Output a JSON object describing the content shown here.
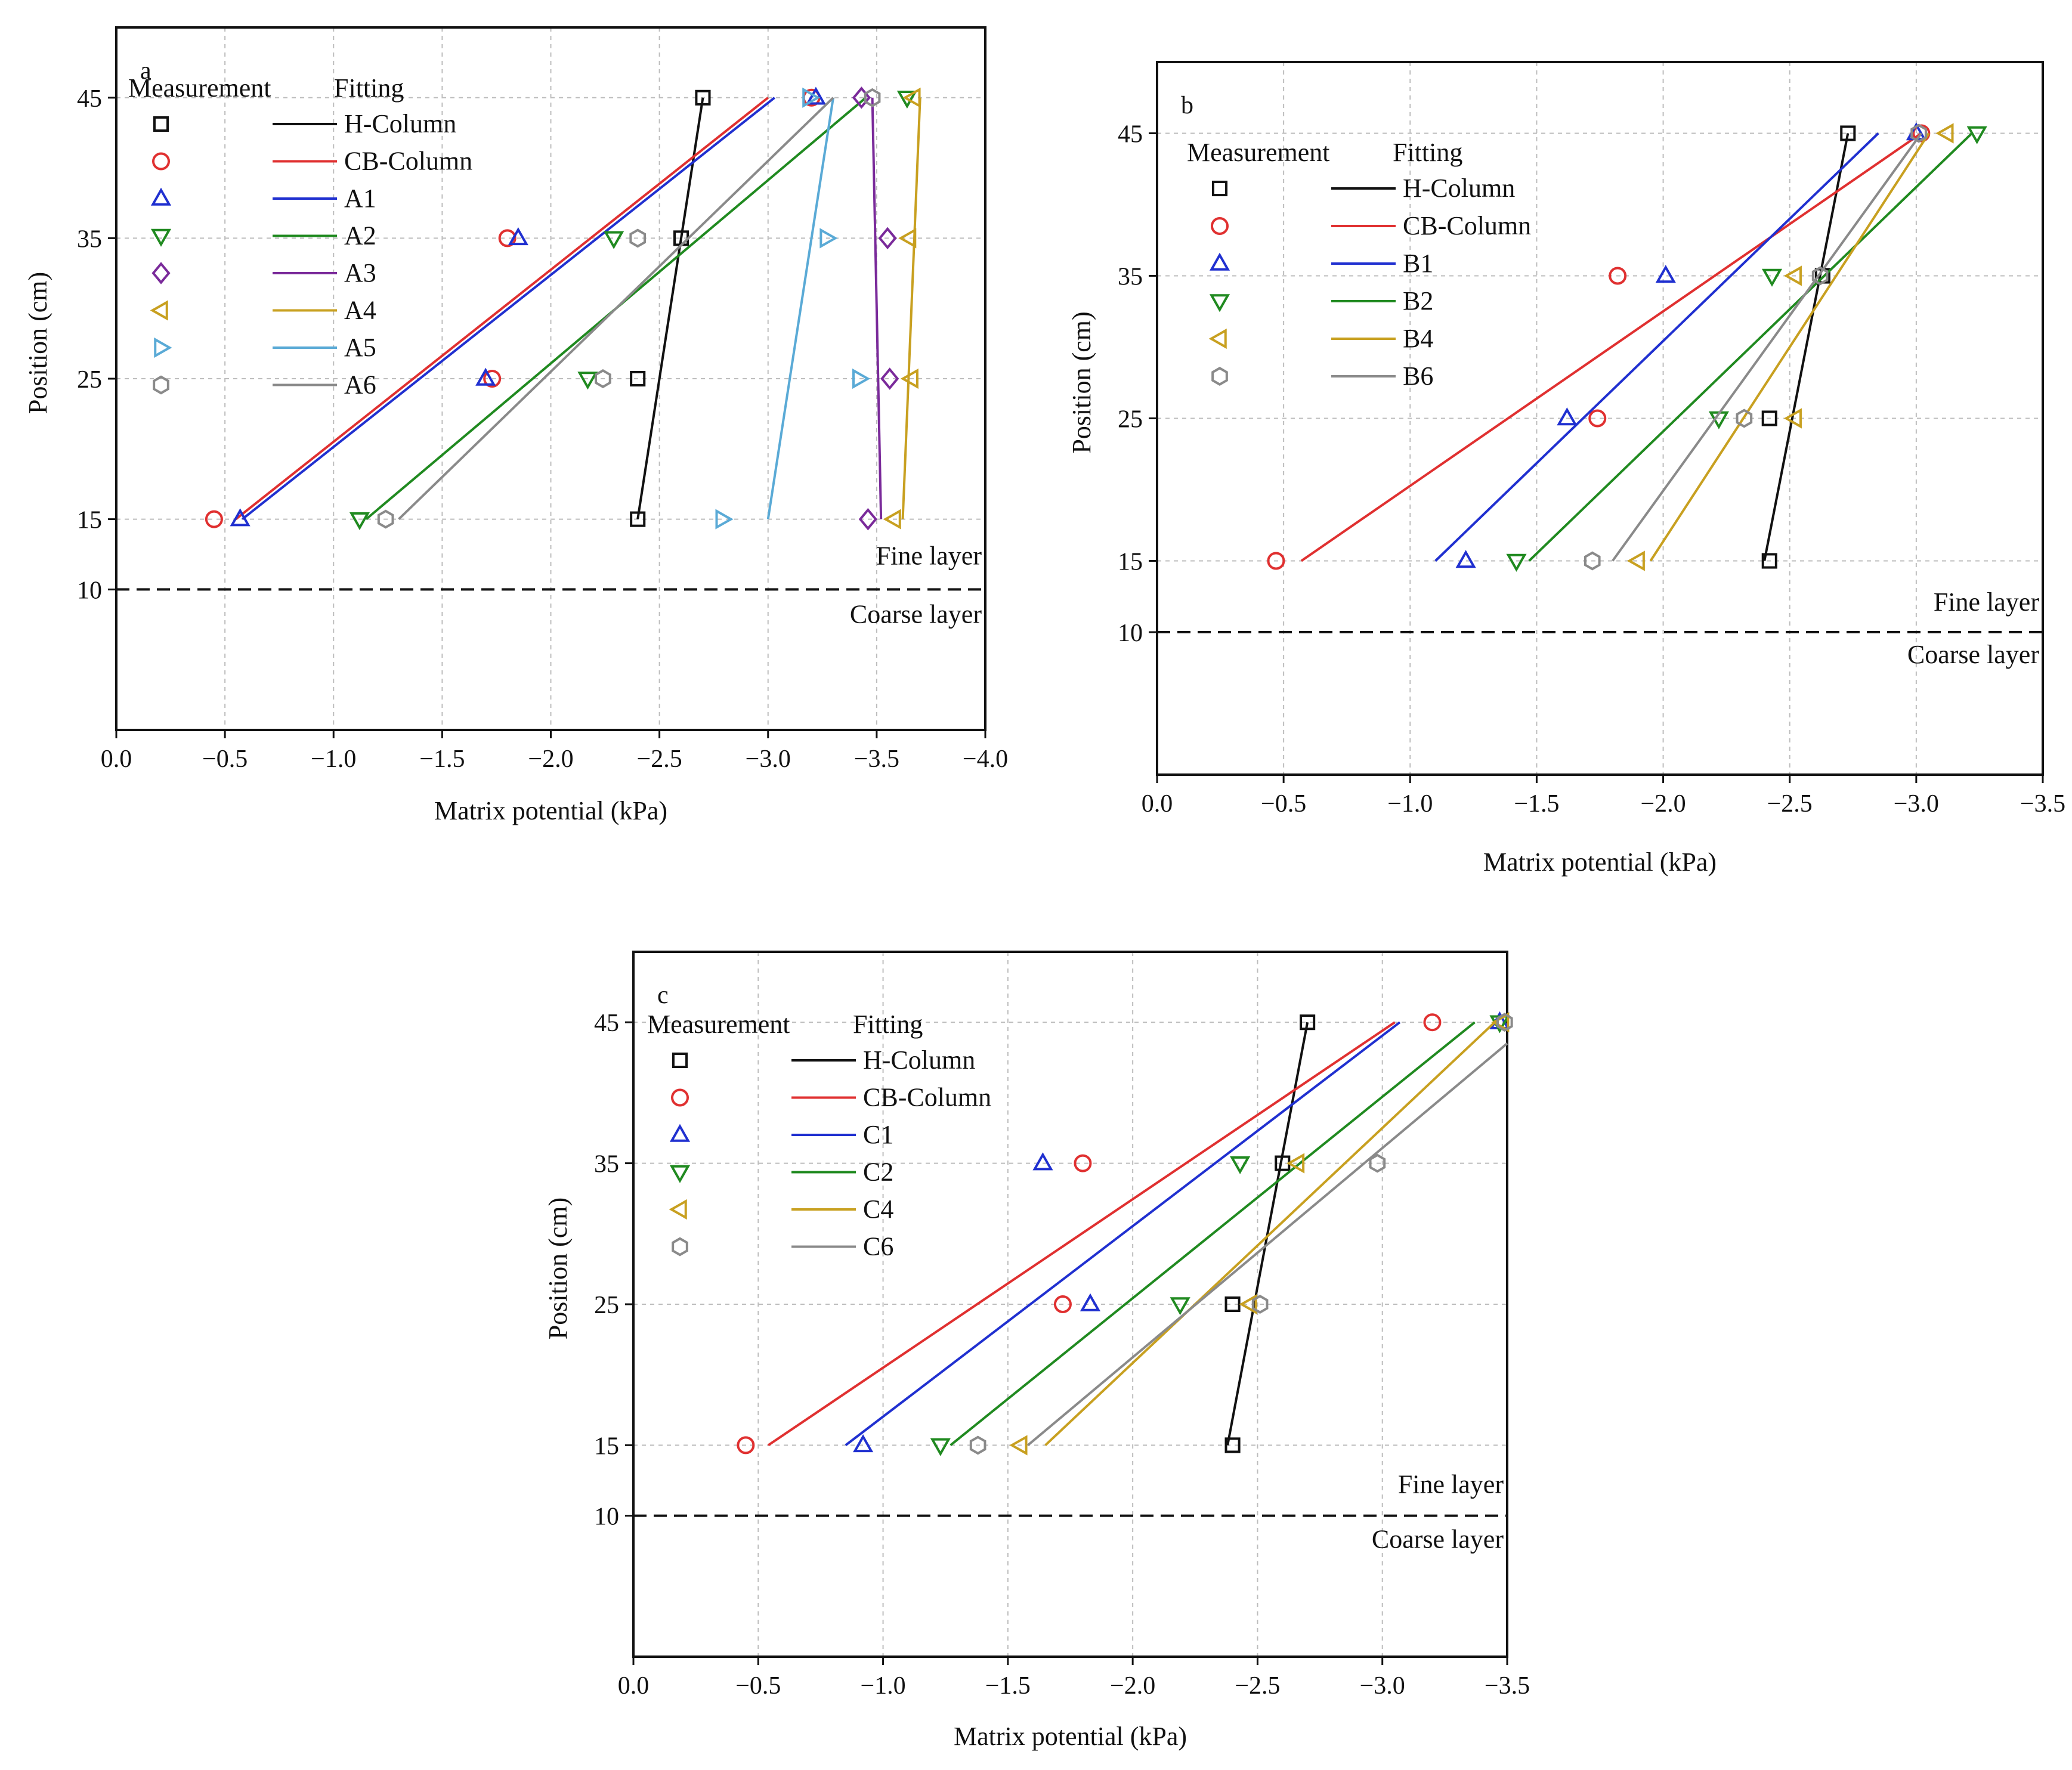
{
  "chart_data": [
    {
      "panel_label": "a",
      "type": "scatter",
      "xlabel": "Matrix potential (kPa)",
      "ylabel": "Position (cm)",
      "xlim": [
        0.0,
        -4.0
      ],
      "ylim": [
        0,
        50
      ],
      "xticks": [
        0.0,
        -0.5,
        -1.0,
        -1.5,
        -2.0,
        -2.5,
        -3.0,
        -3.5,
        -4.0
      ],
      "xtick_labels": [
        "0.0",
        "−0.5",
        "−1.0",
        "−1.5",
        "−2.0",
        "−2.5",
        "−3.0",
        "−3.5",
        "−4.0"
      ],
      "yticks": [
        10,
        15,
        25,
        35,
        45
      ],
      "ytick_labels": [
        "10",
        "15",
        "25",
        "35",
        "45"
      ],
      "grid": true,
      "legend_headers": [
        "Measurement",
        "Fitting"
      ],
      "legend_placement": "top-left",
      "interface_y": 10,
      "fine_label": "Fine layer",
      "coarse_label": "Coarse layer",
      "series": [
        {
          "name": "H-Column",
          "color": "#111111",
          "marker": "square",
          "x": [
            -2.4,
            -2.4,
            -2.6,
            -2.7
          ],
          "y": [
            15,
            25,
            35,
            45
          ],
          "fit": [
            [
              -2.4,
              15
            ],
            [
              -2.7,
              45
            ]
          ]
        },
        {
          "name": "CB-Column",
          "color": "#e03030",
          "marker": "circle",
          "x": [
            -0.45,
            -1.73,
            -1.8,
            -3.2
          ],
          "y": [
            15,
            25,
            35,
            45
          ],
          "fit": [
            [
              -0.55,
              15
            ],
            [
              -3.0,
              45
            ]
          ]
        },
        {
          "name": "A1",
          "color": "#2030d0",
          "marker": "triangle-up",
          "x": [
            -0.57,
            -1.7,
            -1.85,
            -3.22
          ],
          "y": [
            15,
            25,
            35,
            45
          ],
          "fit": [
            [
              -0.58,
              15
            ],
            [
              -3.03,
              45
            ]
          ]
        },
        {
          "name": "A2",
          "color": "#208a20",
          "marker": "triangle-down",
          "x": [
            -1.12,
            -2.17,
            -2.29,
            -3.64
          ],
          "y": [
            15,
            25,
            35,
            45
          ],
          "fit": [
            [
              -1.15,
              15
            ],
            [
              -3.45,
              45
            ]
          ]
        },
        {
          "name": "A3",
          "color": "#7a2a9a",
          "marker": "diamond",
          "x": [
            -3.46,
            -3.56,
            -3.55,
            -3.43
          ],
          "y": [
            15,
            25,
            35,
            45
          ],
          "fit": [
            [
              -3.52,
              15
            ],
            [
              -3.48,
              45
            ]
          ]
        },
        {
          "name": "A4",
          "color": "#c8a020",
          "marker": "triangle-left",
          "x": [
            -3.58,
            -3.66,
            -3.65,
            -3.67
          ],
          "y": [
            15,
            25,
            35,
            45
          ],
          "fit": [
            [
              -3.62,
              15
            ],
            [
              -3.7,
              45
            ]
          ]
        },
        {
          "name": "A5",
          "color": "#5aaad6",
          "marker": "triangle-right",
          "x": [
            -2.79,
            -3.42,
            -3.27,
            -3.19
          ],
          "y": [
            15,
            25,
            35,
            45
          ],
          "fit": [
            [
              -3.0,
              15
            ],
            [
              -3.3,
              45
            ]
          ]
        },
        {
          "name": "A6",
          "color": "#8a8a8a",
          "marker": "hexagon",
          "x": [
            -1.24,
            -2.24,
            -2.4,
            -3.48
          ],
          "y": [
            15,
            25,
            35,
            45
          ],
          "fit": [
            [
              -1.3,
              15
            ],
            [
              -3.3,
              45
            ]
          ]
        }
      ]
    },
    {
      "panel_label": "b",
      "type": "scatter",
      "xlabel": "Matrix potential (kPa)",
      "ylabel": "Position (cm)",
      "xlim": [
        0.0,
        -3.5
      ],
      "ylim": [
        0,
        50
      ],
      "xticks": [
        0.0,
        -0.5,
        -1.0,
        -1.5,
        -2.0,
        -2.5,
        -3.0,
        -3.5
      ],
      "xtick_labels": [
        "0.0",
        "−0.5",
        "−1.0",
        "−1.5",
        "−2.0",
        "−2.5",
        "−3.0",
        "−3.5"
      ],
      "yticks": [
        10,
        15,
        25,
        35,
        45
      ],
      "ytick_labels": [
        "10",
        "15",
        "25",
        "35",
        "45"
      ],
      "grid": true,
      "legend_headers": [
        "Measurement",
        "Fitting"
      ],
      "legend_placement": "top-left",
      "interface_y": 10,
      "fine_label": "Fine layer",
      "coarse_label": "Coarse layer",
      "series": [
        {
          "name": "H-Column",
          "color": "#111111",
          "marker": "square",
          "x": [
            -2.42,
            -2.42,
            -2.63,
            -2.73
          ],
          "y": [
            15,
            25,
            35,
            45
          ],
          "fit": [
            [
              -2.4,
              15
            ],
            [
              -2.73,
              45
            ]
          ]
        },
        {
          "name": "CB-Column",
          "color": "#e03030",
          "marker": "circle",
          "x": [
            -0.47,
            -1.74,
            -1.82,
            -3.02
          ],
          "y": [
            15,
            25,
            35,
            45
          ],
          "fit": [
            [
              -0.57,
              15
            ],
            [
              -3.02,
              45
            ]
          ]
        },
        {
          "name": "B1",
          "color": "#2030d0",
          "marker": "triangle-up",
          "x": [
            -1.22,
            -1.62,
            -2.01,
            -3.0
          ],
          "y": [
            15,
            25,
            35,
            45
          ],
          "fit": [
            [
              -1.1,
              15
            ],
            [
              -2.85,
              45
            ]
          ]
        },
        {
          "name": "B2",
          "color": "#208a20",
          "marker": "triangle-down",
          "x": [
            -1.42,
            -2.22,
            -2.43,
            -3.24
          ],
          "y": [
            15,
            25,
            35,
            45
          ],
          "fit": [
            [
              -1.47,
              15
            ],
            [
              -3.22,
              45
            ]
          ]
        },
        {
          "name": "B4",
          "color": "#c8a020",
          "marker": "triangle-left",
          "x": [
            -1.9,
            -2.52,
            -2.52,
            -3.12
          ],
          "y": [
            15,
            25,
            35,
            45
          ],
          "fit": [
            [
              -1.95,
              15
            ],
            [
              -3.05,
              45
            ]
          ]
        },
        {
          "name": "B6",
          "color": "#8a8a8a",
          "marker": "hexagon",
          "x": [
            -1.72,
            -2.32,
            -2.62,
            -3.01
          ],
          "y": [
            15,
            25,
            35,
            45
          ],
          "fit": [
            [
              -1.8,
              15
            ],
            [
              -3.02,
              45
            ]
          ]
        }
      ]
    },
    {
      "panel_label": "c",
      "type": "scatter",
      "xlabel": "Matrix potential (kPa)",
      "ylabel": "Position (cm)",
      "xlim": [
        0.0,
        -3.5
      ],
      "ylim": [
        0,
        50
      ],
      "xticks": [
        0.0,
        -0.5,
        -1.0,
        -1.5,
        -2.0,
        -2.5,
        -3.0,
        -3.5
      ],
      "xtick_labels": [
        "0.0",
        "−0.5",
        "−1.0",
        "−1.5",
        "−2.0",
        "−2.5",
        "−3.0",
        "−3.5"
      ],
      "yticks": [
        10,
        15,
        25,
        35,
        45
      ],
      "ytick_labels": [
        "10",
        "15",
        "25",
        "35",
        "45"
      ],
      "grid": true,
      "legend_headers": [
        "Measurement",
        "Fitting"
      ],
      "legend_placement": "top-left",
      "interface_y": 10,
      "fine_label": "Fine layer",
      "coarse_label": "Coarse layer",
      "series": [
        {
          "name": "H-Column",
          "color": "#111111",
          "marker": "square",
          "x": [
            -2.4,
            -2.4,
            -2.6,
            -2.7
          ],
          "y": [
            15,
            25,
            35,
            45
          ],
          "fit": [
            [
              -2.38,
              15
            ],
            [
              -2.7,
              45
            ]
          ]
        },
        {
          "name": "CB-Column",
          "color": "#e03030",
          "marker": "circle",
          "x": [
            -0.45,
            -1.72,
            -1.8,
            -3.2
          ],
          "y": [
            15,
            25,
            35,
            45
          ],
          "fit": [
            [
              -0.54,
              15
            ],
            [
              -3.05,
              45
            ]
          ]
        },
        {
          "name": "C1",
          "color": "#2030d0",
          "marker": "triangle-up",
          "x": [
            -0.92,
            -1.83,
            -1.64,
            -3.47
          ],
          "y": [
            15,
            25,
            35,
            45
          ],
          "fit": [
            [
              -0.85,
              15
            ],
            [
              -3.07,
              45
            ]
          ]
        },
        {
          "name": "C2",
          "color": "#208a20",
          "marker": "triangle-down",
          "x": [
            -1.23,
            -2.19,
            -2.43,
            -3.47
          ],
          "y": [
            15,
            25,
            35,
            45
          ],
          "fit": [
            [
              -1.27,
              15
            ],
            [
              -3.37,
              45
            ]
          ]
        },
        {
          "name": "C4",
          "color": "#c8a020",
          "marker": "triangle-left",
          "x": [
            -1.55,
            -2.47,
            -2.66,
            -3.48
          ],
          "y": [
            15,
            25,
            35,
            45
          ],
          "fit": [
            [
              -1.65,
              15
            ],
            [
              -3.45,
              45
            ]
          ]
        },
        {
          "name": "C6",
          "color": "#8a8a8a",
          "marker": "hexagon",
          "x": [
            -1.38,
            -2.51,
            -2.98,
            -3.49
          ],
          "y": [
            15,
            25,
            35,
            45
          ],
          "fit": [
            [
              -1.58,
              15
            ],
            [
              -3.5,
              43.5
            ]
          ]
        }
      ]
    }
  ]
}
